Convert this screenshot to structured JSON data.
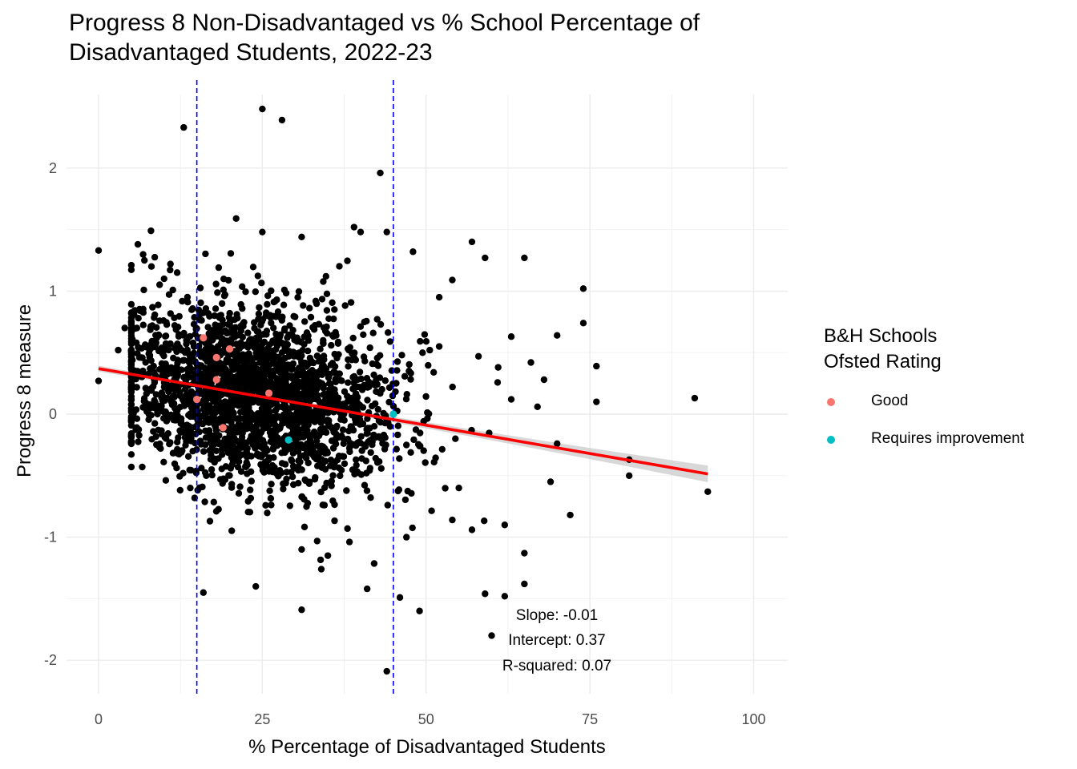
{
  "chart_data": {
    "type": "scatter",
    "title": "Progress 8 Non-Disadvantaged vs % School Percentage of Disadvantaged Students, 2022-23",
    "title_lines": [
      "Progress 8 Non-Disadvantaged vs % School Percentage of",
      "Disadvantaged Students, 2022-23"
    ],
    "xlabel": "% Percentage of Disadvantaged Students",
    "ylabel": "Progress 8 measure",
    "xlim": [
      -2,
      105
    ],
    "ylim": [
      -2.3,
      2.5
    ],
    "x_ticks": [
      0,
      25,
      50,
      75,
      100
    ],
    "x_tick_labels": [
      "0",
      "25",
      "50",
      "75",
      "100"
    ],
    "y_ticks": [
      -2,
      -1,
      0,
      1,
      2
    ],
    "y_tick_labels": [
      "-2",
      "-1",
      "0",
      "1",
      "2"
    ],
    "grid": true,
    "theme": "minimal",
    "point_color": "#000000",
    "vlines": [
      {
        "x": 15,
        "color": "#0000ff",
        "style": "dashed"
      },
      {
        "x": 45,
        "color": "#0000ff",
        "style": "dashed"
      }
    ],
    "regression": {
      "slope": -0.0092,
      "intercept": 0.37,
      "color": "#ff0000",
      "ci_color": "#bebebe",
      "x_range": [
        0,
        93
      ]
    },
    "annotations": [
      "Slope: -0.01",
      "Intercept: 0.37",
      "R-squared: 0.07"
    ],
    "legend": {
      "title_lines": [
        "B&H Schools",
        "Ofsted Rating"
      ],
      "position": "right",
      "items": [
        {
          "label": "Good",
          "color": "#f8766d"
        },
        {
          "label": "Requires improvement",
          "color": "#00bfc4"
        }
      ]
    },
    "highlight_series": [
      {
        "name": "Good",
        "color": "#f8766d",
        "points": [
          [
            16,
            0.62
          ],
          [
            20,
            0.53
          ],
          [
            18,
            0.46
          ],
          [
            18,
            0.28
          ],
          [
            26,
            0.17
          ],
          [
            15,
            0.12
          ],
          [
            19,
            -0.11
          ]
        ]
      },
      {
        "name": "Requires improvement",
        "color": "#00bfc4",
        "points": [
          [
            29,
            -0.21
          ],
          [
            45,
            0.0
          ]
        ]
      }
    ],
    "cloud": {
      "count": 2400,
      "x_mean": 24,
      "x_sd": 10.5,
      "x_min": 5,
      "x_max": 72,
      "y_sd": 0.36
    },
    "series": [
      {
        "name": "Schools",
        "points": [
          [
            0,
            1.33
          ],
          [
            0,
            0.27
          ],
          [
            5,
            -0.05
          ],
          [
            6,
            1.38
          ],
          [
            8,
            1.49
          ],
          [
            13,
            2.33
          ],
          [
            25,
            2.48
          ],
          [
            28,
            2.39
          ],
          [
            43,
            1.96
          ],
          [
            21,
            1.59
          ],
          [
            25,
            1.48
          ],
          [
            31,
            1.44
          ],
          [
            39,
            1.52
          ],
          [
            40,
            1.48
          ],
          [
            44,
            1.48
          ],
          [
            48,
            1.32
          ],
          [
            57,
            1.4
          ],
          [
            59,
            1.27
          ],
          [
            65,
            1.27
          ],
          [
            74,
            1.02
          ],
          [
            74,
            0.74
          ],
          [
            70,
            0.64
          ],
          [
            76,
            0.39
          ],
          [
            76,
            0.1
          ],
          [
            91,
            0.13
          ],
          [
            93,
            -0.63
          ],
          [
            81,
            -0.37
          ],
          [
            81,
            -0.5
          ],
          [
            72,
            -0.82
          ],
          [
            69,
            -0.55
          ],
          [
            65,
            -1.13
          ],
          [
            65,
            -1.38
          ],
          [
            62,
            -1.48
          ],
          [
            59,
            -1.46
          ],
          [
            60,
            -1.8
          ],
          [
            49,
            -1.6
          ],
          [
            46,
            -1.49
          ],
          [
            44,
            -2.09
          ],
          [
            31,
            -1.59
          ],
          [
            34,
            -1.26
          ],
          [
            24,
            -1.4
          ],
          [
            16,
            -1.45
          ],
          [
            17,
            -0.87
          ],
          [
            14,
            -0.6
          ],
          [
            5,
            0.3
          ],
          [
            4,
            0.7
          ],
          [
            3,
            0.52
          ],
          [
            54,
            1.09
          ],
          [
            52,
            0.95
          ],
          [
            66,
            0.42
          ],
          [
            68,
            0.28
          ],
          [
            67,
            0.06
          ],
          [
            70,
            -0.24
          ],
          [
            62,
            -0.9
          ],
          [
            57,
            -0.94
          ],
          [
            54,
            -0.86
          ],
          [
            47,
            -1.0
          ],
          [
            38,
            -0.93
          ],
          [
            41,
            -1.42
          ],
          [
            31,
            -1.1
          ],
          [
            35,
            -1.15
          ],
          [
            55,
            -0.6
          ],
          [
            61,
            0.38
          ],
          [
            63,
            0.12
          ],
          [
            49,
            -0.26
          ],
          [
            42,
            0.25
          ],
          [
            12,
            1.15
          ],
          [
            10,
            1.1
          ],
          [
            7,
            1.25
          ],
          [
            36,
            0.85
          ],
          [
            30,
            0.79
          ],
          [
            52,
            0.55
          ],
          [
            58,
            0.47
          ],
          [
            63,
            0.63
          ]
        ]
      }
    ]
  }
}
